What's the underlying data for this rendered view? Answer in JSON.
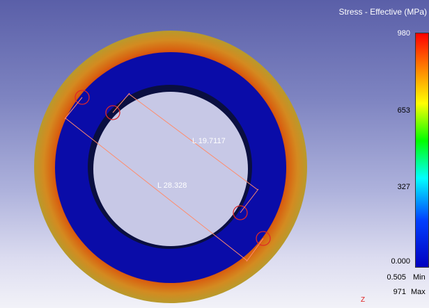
{
  "legend": {
    "title": "Stress - Effective (MPa)",
    "ticks": [
      {
        "value": "980"
      },
      {
        "value": "653"
      },
      {
        "value": "327"
      },
      {
        "value": "0.000"
      }
    ],
    "min": {
      "value": "0.505",
      "label": "Min"
    },
    "max": {
      "value": "971",
      "label": "Max"
    }
  },
  "measurements": [
    {
      "label": "L  19.7117"
    },
    {
      "label": "L  28.328"
    }
  ],
  "axis": {
    "z_label": "Z"
  },
  "colors": {
    "ring_outer": "#d07a2a",
    "ring_inner": "#0a0ca8",
    "hole_edge": "#0a0f40",
    "dimension_line": "#ff8c6c"
  }
}
